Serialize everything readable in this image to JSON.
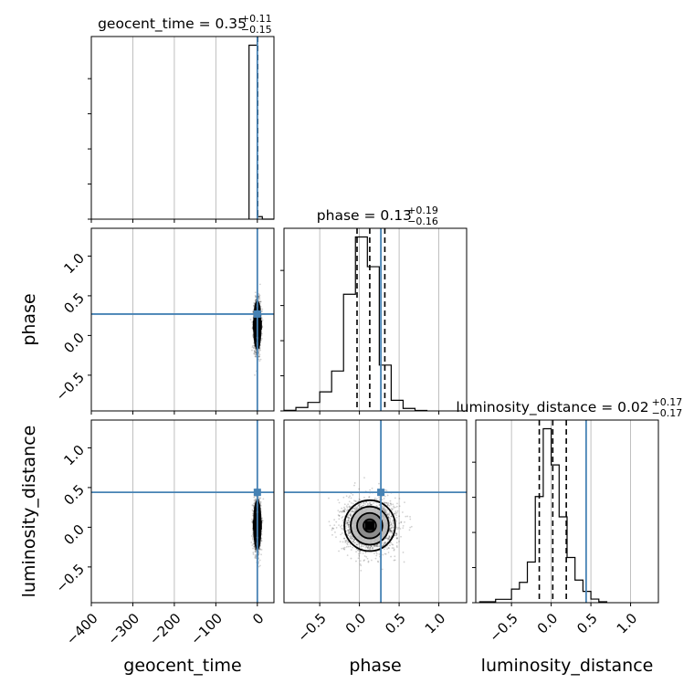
{
  "chart_data": {
    "type": "corner",
    "parameters": [
      "geocent_time",
      "phase",
      "luminosity_distance"
    ],
    "truth_color": "#4682b4",
    "truths": {
      "geocent_time": 0,
      "phase": 0.27,
      "luminosity_distance": 0.44
    },
    "titles": [
      {
        "param": "geocent_time",
        "main": "geocent_time = 0.35",
        "plus": "+0.11",
        "minus": "−0.15"
      },
      {
        "param": "phase",
        "main": "phase = 0.13",
        "plus": "+0.19",
        "minus": "−0.16"
      },
      {
        "param": "luminosity_distance",
        "main": "luminosity_distance = 0.02",
        "plus": "+0.17",
        "minus": "−0.17"
      }
    ],
    "axis_labels": {
      "geocent_time": "geocent_time",
      "phase": "phase",
      "luminosity_distance": "luminosity_distance"
    },
    "ranges": {
      "geocent_time": [
        -400,
        40
      ],
      "phase": [
        -0.95,
        1.35
      ],
      "luminosity_distance": [
        -0.95,
        1.35
      ]
    },
    "ticks": {
      "geocent_time": [
        -400,
        -300,
        -200,
        -100,
        0
      ],
      "geocent_time_labels": [
        "−400",
        "−300",
        "−200",
        "−100",
        "0"
      ],
      "phase": [
        -0.5,
        0.0,
        0.5,
        1.0
      ],
      "phase_labels": [
        "−0.5",
        "0.0",
        "0.5",
        "1.0"
      ],
      "luminosity_distance": [
        -0.5,
        0.0,
        0.5,
        1.0
      ],
      "luminosity_distance_labels": [
        "−0.5",
        "0.0",
        "0.5",
        "1.0"
      ]
    },
    "quantile_lines": {
      "geocent_time": [
        0.2,
        0.35,
        0.46
      ],
      "phase": [
        -0.03,
        0.13,
        0.32
      ],
      "luminosity_distance": [
        -0.15,
        0.02,
        0.19
      ]
    },
    "hist": {
      "geocent_time": {
        "edges": [
          -20,
          0,
          12,
          40
        ],
        "counts": [
          0.97,
          0.014,
          0.0
        ]
      },
      "phase": {
        "edges": [
          -0.95,
          -0.8,
          -0.65,
          -0.5,
          -0.35,
          -0.2,
          -0.05,
          0.1,
          0.25,
          0.4,
          0.55,
          0.7,
          0.85
        ],
        "counts": [
          0.003,
          0.016,
          0.04,
          0.09,
          0.188,
          0.55,
          0.82,
          0.68,
          0.216,
          0.05,
          0.012,
          0.002
        ]
      },
      "luminosity_distance": {
        "edges": [
          -0.9,
          -0.7,
          -0.5,
          -0.4,
          -0.3,
          -0.2,
          -0.1,
          0.0,
          0.1,
          0.2,
          0.3,
          0.4,
          0.5,
          0.6,
          0.7
        ],
        "counts": [
          0.004,
          0.015,
          0.06,
          0.09,
          0.18,
          0.47,
          0.77,
          0.61,
          0.38,
          0.2,
          0.1,
          0.05,
          0.016,
          0.004
        ]
      }
    },
    "density_2d": [
      {
        "x": "geocent_time",
        "y": "phase",
        "center": [
          0,
          0.13
        ],
        "sigma": [
          4,
          0.15
        ]
      },
      {
        "x": "geocent_time",
        "y": "luminosity_distance",
        "center": [
          0,
          0.03
        ],
        "sigma": [
          4,
          0.15
        ]
      },
      {
        "x": "phase",
        "y": "luminosity_distance",
        "center": [
          0.13,
          0.02
        ],
        "sigma": [
          0.16,
          0.16
        ]
      }
    ],
    "grid": true,
    "legend": "none"
  }
}
